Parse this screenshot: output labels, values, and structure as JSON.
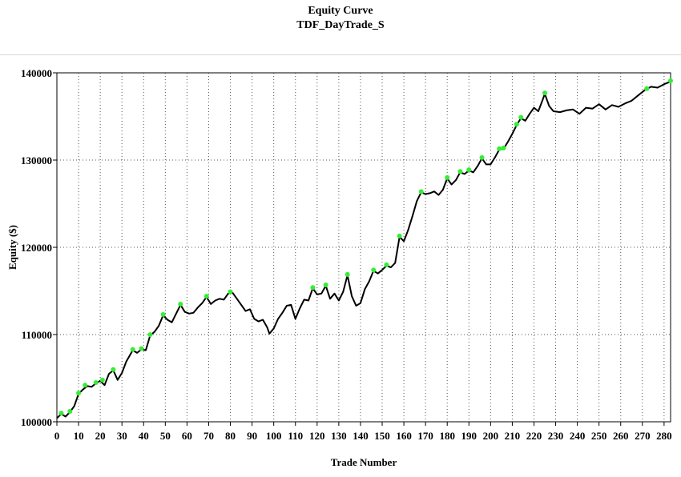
{
  "chart_data": {
    "type": "line",
    "title": "Equity Curve",
    "subtitle": "TDF_DayTrade_S",
    "xlabel": "Trade Number",
    "ylabel": "Equity ($)",
    "xlim": [
      0,
      283
    ],
    "ylim": [
      100000,
      140000
    ],
    "x_ticks": [
      0,
      10,
      20,
      30,
      40,
      50,
      60,
      70,
      80,
      90,
      100,
      110,
      120,
      130,
      140,
      150,
      160,
      170,
      180,
      190,
      200,
      210,
      220,
      230,
      240,
      250,
      260,
      270,
      280
    ],
    "y_ticks": [
      100000,
      110000,
      120000,
      130000,
      140000
    ],
    "y_tick_labels": [
      "100000",
      "110000",
      "120000",
      "130000",
      "140000"
    ],
    "grid": "dotted",
    "line_color": "#000000",
    "marker_color": "#33ee33",
    "series": [
      {
        "values": [
          [
            0,
            100400
          ],
          [
            2,
            100900
          ],
          [
            4,
            100600
          ],
          [
            6,
            101100
          ],
          [
            8,
            101800
          ],
          [
            10,
            103200
          ],
          [
            12,
            103700
          ],
          [
            14,
            104100
          ],
          [
            16,
            104000
          ],
          [
            18,
            104400
          ],
          [
            20,
            104700
          ],
          [
            22,
            104200
          ],
          [
            24,
            105500
          ],
          [
            26,
            105900
          ],
          [
            28,
            104800
          ],
          [
            30,
            105600
          ],
          [
            32,
            106900
          ],
          [
            35,
            108200
          ],
          [
            37,
            107900
          ],
          [
            39,
            108300
          ],
          [
            41,
            108200
          ],
          [
            43,
            109900
          ],
          [
            45,
            110300
          ],
          [
            47,
            111000
          ],
          [
            49,
            112200
          ],
          [
            51,
            111700
          ],
          [
            53,
            111400
          ],
          [
            55,
            112400
          ],
          [
            57,
            113400
          ],
          [
            59,
            112600
          ],
          [
            61,
            112400
          ],
          [
            63,
            112500
          ],
          [
            65,
            113100
          ],
          [
            67,
            113600
          ],
          [
            69,
            114300
          ],
          [
            71,
            113500
          ],
          [
            73,
            113900
          ],
          [
            75,
            114100
          ],
          [
            77,
            114000
          ],
          [
            79,
            114700
          ],
          [
            81,
            114800
          ],
          [
            83,
            114100
          ],
          [
            85,
            113400
          ],
          [
            87,
            112700
          ],
          [
            89,
            112900
          ],
          [
            91,
            111800
          ],
          [
            93,
            111500
          ],
          [
            95,
            111700
          ],
          [
            97,
            110800
          ],
          [
            98,
            110100
          ],
          [
            100,
            110700
          ],
          [
            102,
            111800
          ],
          [
            104,
            112500
          ],
          [
            106,
            113300
          ],
          [
            108,
            113400
          ],
          [
            110,
            111800
          ],
          [
            112,
            113000
          ],
          [
            114,
            114000
          ],
          [
            116,
            113900
          ],
          [
            118,
            115300
          ],
          [
            120,
            114600
          ],
          [
            122,
            114700
          ],
          [
            124,
            115600
          ],
          [
            126,
            114100
          ],
          [
            128,
            114700
          ],
          [
            130,
            113900
          ],
          [
            132,
            114900
          ],
          [
            134,
            116800
          ],
          [
            136,
            114400
          ],
          [
            138,
            113300
          ],
          [
            140,
            113600
          ],
          [
            142,
            115200
          ],
          [
            144,
            116100
          ],
          [
            146,
            117300
          ],
          [
            148,
            117000
          ],
          [
            150,
            117400
          ],
          [
            152,
            117900
          ],
          [
            154,
            117700
          ],
          [
            156,
            118200
          ],
          [
            158,
            121200
          ],
          [
            160,
            120700
          ],
          [
            162,
            122000
          ],
          [
            164,
            123600
          ],
          [
            166,
            125300
          ],
          [
            168,
            126300
          ],
          [
            170,
            126100
          ],
          [
            172,
            126200
          ],
          [
            174,
            126400
          ],
          [
            176,
            126000
          ],
          [
            178,
            126600
          ],
          [
            180,
            127900
          ],
          [
            182,
            127200
          ],
          [
            184,
            127700
          ],
          [
            186,
            128600
          ],
          [
            188,
            128400
          ],
          [
            190,
            128800
          ],
          [
            192,
            128600
          ],
          [
            194,
            129300
          ],
          [
            196,
            130200
          ],
          [
            198,
            129500
          ],
          [
            200,
            129500
          ],
          [
            202,
            130300
          ],
          [
            204,
            131200
          ],
          [
            206,
            131300
          ],
          [
            208,
            132100
          ],
          [
            210,
            133000
          ],
          [
            212,
            134000
          ],
          [
            214,
            134800
          ],
          [
            216,
            134500
          ],
          [
            218,
            135300
          ],
          [
            220,
            136000
          ],
          [
            222,
            135600
          ],
          [
            224,
            136900
          ],
          [
            225,
            137600
          ],
          [
            227,
            136200
          ],
          [
            229,
            135600
          ],
          [
            232,
            135500
          ],
          [
            235,
            135700
          ],
          [
            238,
            135800
          ],
          [
            241,
            135300
          ],
          [
            244,
            136000
          ],
          [
            247,
            135900
          ],
          [
            250,
            136400
          ],
          [
            253,
            135800
          ],
          [
            256,
            136300
          ],
          [
            259,
            136100
          ],
          [
            262,
            136500
          ],
          [
            265,
            136800
          ],
          [
            268,
            137400
          ],
          [
            271,
            138000
          ],
          [
            274,
            138400
          ],
          [
            277,
            138300
          ],
          [
            280,
            138700
          ],
          [
            283,
            139000
          ]
        ],
        "highs": [
          [
            2,
            100900
          ],
          [
            6,
            101100
          ],
          [
            10,
            103200
          ],
          [
            13,
            104100
          ],
          [
            18,
            104400
          ],
          [
            21,
            104700
          ],
          [
            26,
            105900
          ],
          [
            35,
            108200
          ],
          [
            39,
            108300
          ],
          [
            43,
            109900
          ],
          [
            49,
            112200
          ],
          [
            57,
            113400
          ],
          [
            69,
            114300
          ],
          [
            80,
            114800
          ],
          [
            118,
            115300
          ],
          [
            124,
            115600
          ],
          [
            134,
            116800
          ],
          [
            146,
            117300
          ],
          [
            152,
            117900
          ],
          [
            158,
            121200
          ],
          [
            168,
            126300
          ],
          [
            180,
            127900
          ],
          [
            186,
            128600
          ],
          [
            190,
            128800
          ],
          [
            196,
            130200
          ],
          [
            204,
            131200
          ],
          [
            206,
            131300
          ],
          [
            212,
            134000
          ],
          [
            214,
            134800
          ],
          [
            225,
            137600
          ],
          [
            272,
            138100
          ],
          [
            283,
            139000
          ]
        ]
      }
    ]
  }
}
